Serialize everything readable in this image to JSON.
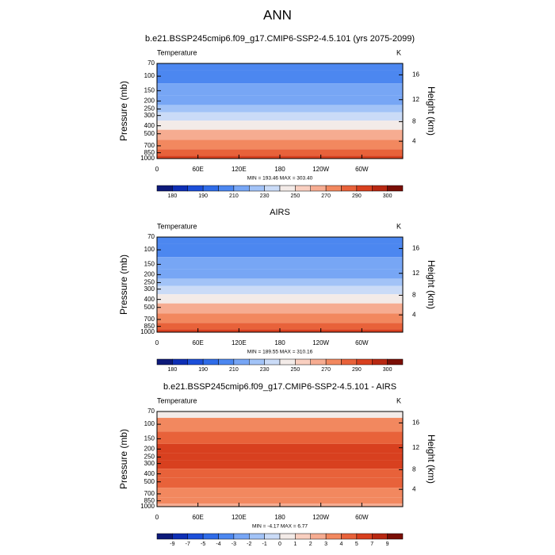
{
  "title": "ANN",
  "chart_data": [
    {
      "type": "contour",
      "title": "b.e21.BSSP245cmip6.f09_g17.CMIP6-SSP2-4.5.101 (yrs 2075-2099)",
      "left_label": "Temperature",
      "right_label": "K",
      "ylabel": "Pressure (mb)",
      "y2label": "Height (km)",
      "log_y": true,
      "xlim": [
        0,
        360
      ],
      "xticks": [
        0,
        {
          "value": 60,
          "label": "60E"
        },
        {
          "value": 120,
          "label": "120E"
        },
        180,
        {
          "value": 240,
          "label": "120W"
        },
        {
          "value": 300,
          "label": "60W"
        }
      ],
      "ylim": [
        1000,
        70
      ],
      "yticks": [
        70,
        100,
        150,
        200,
        250,
        300,
        400,
        500,
        700,
        850,
        1000
      ],
      "y2lim": [
        0.1,
        18.6
      ],
      "y2ticks": [
        4,
        8,
        12,
        16
      ],
      "pressure": [
        70,
        100,
        150,
        200,
        250,
        300,
        400,
        500,
        700,
        850,
        1000
      ],
      "values": [
        205,
        205,
        212,
        218,
        226,
        234,
        248,
        260,
        275,
        285,
        292
      ],
      "stats_label": "MIN = 193.46  MAX = 303.40",
      "colorbar": {
        "colors": [
          "#0d1a7a",
          "#0e2fb5",
          "#1c4fd9",
          "#2f6ce8",
          "#4c87f0",
          "#77a6f5",
          "#a2c3f7",
          "#cadbf7",
          "#f3ebe8",
          "#f9cfc0",
          "#f6ac91",
          "#f2885f",
          "#e8623a",
          "#d8401f",
          "#b82812",
          "#7a0e05"
        ],
        "ticks": [
          180,
          null,
          190,
          null,
          210,
          null,
          230,
          null,
          250,
          null,
          270,
          null,
          290,
          null,
          300
        ]
      }
    },
    {
      "type": "contour",
      "title": "AIRS",
      "left_label": "Temperature",
      "right_label": "K",
      "ylabel": "Pressure (mb)",
      "y2label": "Height (km)",
      "log_y": true,
      "xlim": [
        0,
        360
      ],
      "xticks": [
        0,
        {
          "value": 60,
          "label": "60E"
        },
        {
          "value": 120,
          "label": "120E"
        },
        180,
        {
          "value": 240,
          "label": "120W"
        },
        {
          "value": 300,
          "label": "60W"
        }
      ],
      "ylim": [
        1000,
        70
      ],
      "yticks": [
        70,
        100,
        150,
        200,
        250,
        300,
        400,
        500,
        700,
        850,
        1000
      ],
      "y2lim": [
        0.1,
        18.6
      ],
      "y2ticks": [
        4,
        8,
        12,
        16
      ],
      "pressure": [
        70,
        100,
        150,
        200,
        250,
        300,
        400,
        500,
        700,
        850,
        1000
      ],
      "values": [
        205,
        203,
        211,
        217,
        226,
        234,
        248,
        260,
        276,
        286,
        294
      ],
      "stats_label": "MIN = 189.55  MAX = 310.16",
      "colorbar": {
        "colors": [
          "#0d1a7a",
          "#0e2fb5",
          "#1c4fd9",
          "#2f6ce8",
          "#4c87f0",
          "#77a6f5",
          "#a2c3f7",
          "#cadbf7",
          "#f3ebe8",
          "#f9cfc0",
          "#f6ac91",
          "#f2885f",
          "#e8623a",
          "#d8401f",
          "#b82812",
          "#7a0e05"
        ],
        "ticks": [
          180,
          null,
          190,
          null,
          210,
          null,
          230,
          null,
          250,
          null,
          270,
          null,
          290,
          null,
          300
        ]
      }
    },
    {
      "type": "contour",
      "title": "b.e21.BSSP245cmip6.f09_g17.CMIP6-SSP2-4.5.101 - AIRS",
      "left_label": "Temperature",
      "right_label": "K",
      "ylabel": "Pressure (mb)",
      "y2label": "Height (km)",
      "log_y": true,
      "xlim": [
        0,
        360
      ],
      "xticks": [
        0,
        {
          "value": 60,
          "label": "60E"
        },
        {
          "value": 120,
          "label": "120E"
        },
        180,
        {
          "value": 240,
          "label": "120W"
        },
        {
          "value": 300,
          "label": "60W"
        }
      ],
      "ylim": [
        1000,
        70
      ],
      "yticks": [
        70,
        100,
        150,
        200,
        250,
        300,
        400,
        500,
        700,
        850,
        1000
      ],
      "y2lim": [
        0.1,
        18.6
      ],
      "y2ticks": [
        4,
        8,
        12,
        16
      ],
      "pressure": [
        70,
        100,
        150,
        200,
        250,
        300,
        400,
        500,
        700,
        850,
        1000
      ],
      "values": [
        0.5,
        3.5,
        4.5,
        5.5,
        5.5,
        5.5,
        4.5,
        4.5,
        3.5,
        3.5,
        2.5
      ],
      "stats_label": "MIN =  -4.17  MAX =   6.77",
      "colorbar": {
        "colors": [
          "#0d1a7a",
          "#0e2fb5",
          "#1c4fd9",
          "#2f6ce8",
          "#4c87f0",
          "#77a6f5",
          "#a2c3f7",
          "#cadbf7",
          "#f3ebe8",
          "#f9cfc0",
          "#f6ac91",
          "#f2885f",
          "#e8623a",
          "#d8401f",
          "#b82812",
          "#7a0e05"
        ],
        "ticks": [
          -9,
          -7,
          -5,
          -4,
          -3,
          -2,
          -1,
          0,
          1,
          2,
          3,
          4,
          5,
          7,
          9
        ]
      }
    }
  ]
}
